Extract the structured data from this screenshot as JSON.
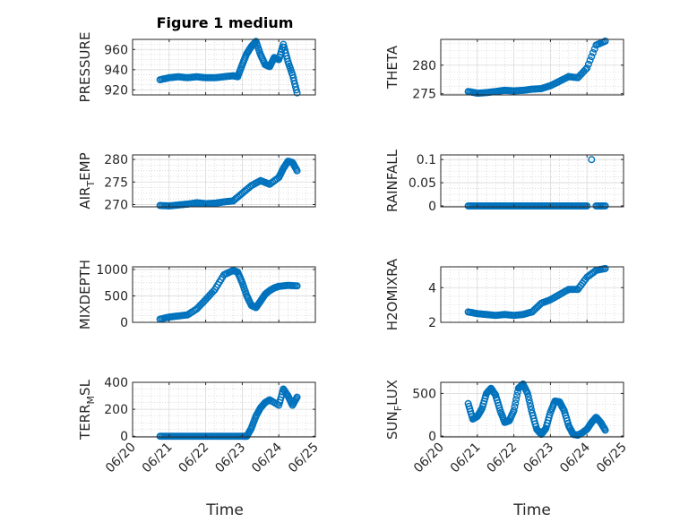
{
  "figure": {
    "title": "Figure 1 medium",
    "xlabel": "Time",
    "x_ticks": [
      "06/20",
      "06/21",
      "06/22",
      "06/23",
      "06/24",
      "06/25"
    ],
    "marker_color": "#0072BD",
    "grid": true
  },
  "chart_data": [
    {
      "type": "scatter",
      "ylabel": "PRESSURE",
      "subscript": "",
      "ylim": [
        915,
        970
      ],
      "yticks": [
        920,
        940,
        960
      ],
      "ytick_labels": [
        "920",
        "940",
        "960"
      ],
      "x": [
        "06/20 18:00",
        "06/21 00:00",
        "06/21 06:00",
        "06/21 12:00",
        "06/21 18:00",
        "06/22 00:00",
        "06/22 06:00",
        "06/22 12:00",
        "06/22 18:00",
        "06/22 21:00",
        "06/23 00:00",
        "06/23 03:00",
        "06/23 06:00",
        "06/23 09:00",
        "06/23 12:00",
        "06/23 15:00",
        "06/23 18:00",
        "06/23 21:00",
        "06/24 00:00",
        "06/24 03:00",
        "06/24 06:00",
        "06/24 09:00",
        "06/24 12:00"
      ],
      "y": [
        930,
        932,
        933,
        932,
        933,
        932,
        932,
        933,
        934,
        933,
        945,
        956,
        963,
        968,
        955,
        945,
        943,
        952,
        950,
        965,
        948,
        935,
        917
      ]
    },
    {
      "type": "scatter",
      "ylabel": "THETA",
      "subscript": "",
      "ylim": [
        274.8,
        284.5
      ],
      "yticks": [
        275,
        280
      ],
      "ytick_labels": [
        "275",
        "280"
      ],
      "x": [
        "06/20 18:00",
        "06/21 00:00",
        "06/21 06:00",
        "06/21 12:00",
        "06/21 18:00",
        "06/22 00:00",
        "06/22 06:00",
        "06/22 12:00",
        "06/22 18:00",
        "06/23 00:00",
        "06/23 06:00",
        "06/23 12:00",
        "06/23 18:00",
        "06/24 00:00",
        "06/24 06:00",
        "06/24 12:00"
      ],
      "y": [
        275.4,
        275.1,
        275.2,
        275.4,
        275.6,
        275.5,
        275.6,
        275.8,
        275.9,
        276.4,
        277.2,
        278.0,
        277.8,
        279.5,
        283.5,
        284.2
      ]
    },
    {
      "type": "scatter",
      "ylabel": "AIR",
      "subscript": "T",
      "ylabel_suffix": "EMP",
      "ylim": [
        269.5,
        281
      ],
      "yticks": [
        270,
        275,
        280
      ],
      "ytick_labels": [
        "270",
        "275",
        "280"
      ],
      "x": [
        "06/20 18:00",
        "06/21 00:00",
        "06/21 06:00",
        "06/21 12:00",
        "06/21 18:00",
        "06/22 00:00",
        "06/22 06:00",
        "06/22 12:00",
        "06/22 18:00",
        "06/23 00:00",
        "06/23 06:00",
        "06/23 12:00",
        "06/23 18:00",
        "06/24 00:00",
        "06/24 03:00",
        "06/24 06:00",
        "06/24 09:00",
        "06/24 12:00"
      ],
      "y": [
        269.8,
        269.7,
        269.9,
        270.1,
        270.4,
        270.2,
        270.3,
        270.6,
        270.8,
        272.5,
        274.2,
        275.3,
        274.5,
        276.0,
        278.0,
        279.6,
        279.3,
        277.5
      ]
    },
    {
      "type": "scatter",
      "ylabel": "RAINFALL",
      "subscript": "",
      "ylim": [
        -0.002,
        0.11
      ],
      "yticks": [
        0,
        0.05,
        0.1
      ],
      "ytick_labels": [
        "0",
        "0.05",
        "0.1"
      ],
      "x": [
        "06/20 18:00",
        "06/21 00:00",
        "06/21 06:00",
        "06/21 12:00",
        "06/21 18:00",
        "06/22 00:00",
        "06/22 06:00",
        "06/22 12:00",
        "06/22 18:00",
        "06/23 00:00",
        "06/23 06:00",
        "06/23 12:00",
        "06/23 18:00",
        "06/24 00:00",
        "06/24 03:00",
        "06/24 06:00",
        "06/24 12:00"
      ],
      "y": [
        0,
        0,
        0,
        0,
        0,
        0,
        0,
        0,
        0,
        0,
        0,
        0,
        0,
        0,
        0.1,
        0,
        0
      ]
    },
    {
      "type": "scatter",
      "ylabel": "MIXDEPTH",
      "subscript": "",
      "ylim": [
        0,
        1050
      ],
      "yticks": [
        0,
        500,
        1000
      ],
      "ytick_labels": [
        "0",
        "500",
        "1000"
      ],
      "x": [
        "06/20 18:00",
        "06/21 00:00",
        "06/21 06:00",
        "06/21 12:00",
        "06/21 18:00",
        "06/22 00:00",
        "06/22 06:00",
        "06/22 12:00",
        "06/22 18:00",
        "06/22 21:00",
        "06/23 00:00",
        "06/23 03:00",
        "06/23 06:00",
        "06/23 09:00",
        "06/23 12:00",
        "06/23 15:00",
        "06/23 18:00",
        "06/23 21:00",
        "06/24 00:00",
        "06/24 06:00",
        "06/24 12:00"
      ],
      "y": [
        60,
        100,
        120,
        140,
        250,
        430,
        620,
        900,
        980,
        950,
        750,
        500,
        320,
        280,
        400,
        530,
        600,
        650,
        680,
        700,
        690
      ]
    },
    {
      "type": "scatter",
      "ylabel": "H2OMIXRA",
      "subscript": "",
      "ylim": [
        2,
        5.2
      ],
      "yticks": [
        2,
        4
      ],
      "ytick_labels": [
        "2",
        "4"
      ],
      "x": [
        "06/20 18:00",
        "06/21 00:00",
        "06/21 06:00",
        "06/21 12:00",
        "06/21 18:00",
        "06/22 00:00",
        "06/22 06:00",
        "06/22 12:00",
        "06/22 18:00",
        "06/23 00:00",
        "06/23 06:00",
        "06/23 12:00",
        "06/23 18:00",
        "06/24 00:00",
        "06/24 06:00",
        "06/24 12:00"
      ],
      "y": [
        2.6,
        2.5,
        2.45,
        2.4,
        2.45,
        2.4,
        2.45,
        2.6,
        3.1,
        3.3,
        3.6,
        3.9,
        3.9,
        4.6,
        5.0,
        5.1
      ]
    },
    {
      "type": "scatter",
      "ylabel": "TERR",
      "subscript": "M",
      "ylabel_suffix": "SL",
      "ylim": [
        -5,
        400
      ],
      "yticks": [
        0,
        200,
        400
      ],
      "ytick_labels": [
        "0",
        "200",
        "400"
      ],
      "x": [
        "06/20 18:00",
        "06/21 00:00",
        "06/21 06:00",
        "06/21 12:00",
        "06/21 18:00",
        "06/22 00:00",
        "06/22 06:00",
        "06/22 12:00",
        "06/22 18:00",
        "06/23 00:00",
        "06/23 03:00",
        "06/23 06:00",
        "06/23 09:00",
        "06/23 12:00",
        "06/23 15:00",
        "06/23 18:00",
        "06/24 00:00",
        "06/24 03:00",
        "06/24 06:00",
        "06/24 09:00",
        "06/24 12:00"
      ],
      "y": [
        0,
        0,
        0,
        0,
        0,
        0,
        0,
        0,
        0,
        0,
        0,
        60,
        150,
        210,
        250,
        270,
        230,
        350,
        300,
        230,
        290
      ]
    },
    {
      "type": "scatter",
      "ylabel": "SUN",
      "subscript": "F",
      "ylabel_suffix": "LUX",
      "ylim": [
        -10,
        630
      ],
      "yticks": [
        0,
        500
      ],
      "ytick_labels": [
        "0",
        "500"
      ],
      "x": [
        "06/20 18:00",
        "06/20 21:00",
        "06/21 00:00",
        "06/21 03:00",
        "06/21 06:00",
        "06/21 09:00",
        "06/21 12:00",
        "06/21 15:00",
        "06/21 18:00",
        "06/21 21:00",
        "06/22 00:00",
        "06/22 03:00",
        "06/22 06:00",
        "06/22 09:00",
        "06/22 12:00",
        "06/22 15:00",
        "06/22 18:00",
        "06/22 21:00",
        "06/23 00:00",
        "06/23 03:00",
        "06/23 06:00",
        "06/23 09:00",
        "06/23 12:00",
        "06/23 15:00",
        "06/23 18:00",
        "06/23 21:00",
        "06/24 00:00",
        "06/24 03:00",
        "06/24 06:00",
        "06/24 09:00",
        "06/24 12:00"
      ],
      "y": [
        380,
        200,
        230,
        320,
        500,
        560,
        480,
        300,
        160,
        180,
        300,
        560,
        610,
        500,
        270,
        80,
        20,
        90,
        280,
        410,
        400,
        300,
        120,
        20,
        10,
        40,
        80,
        160,
        220,
        160,
        70
      ]
    }
  ]
}
